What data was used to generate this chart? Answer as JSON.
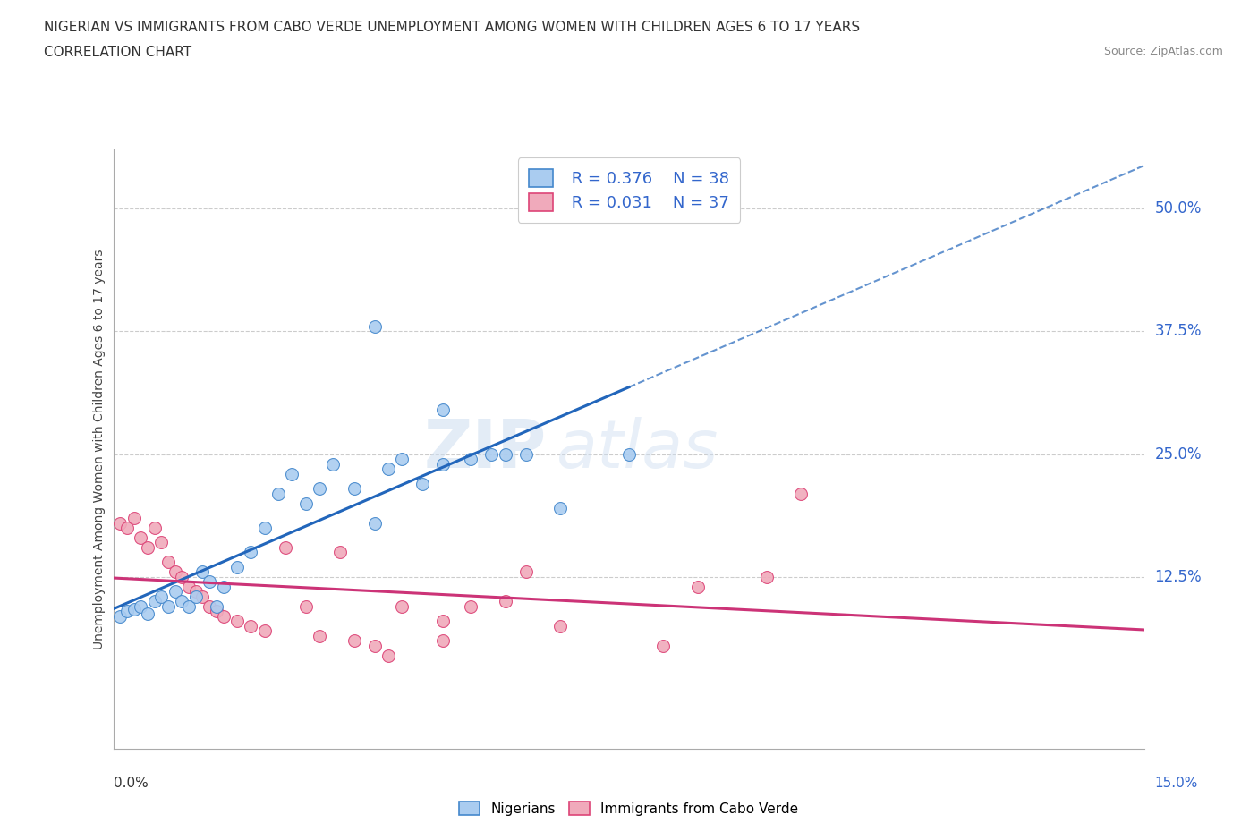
{
  "title_line1": "NIGERIAN VS IMMIGRANTS FROM CABO VERDE UNEMPLOYMENT AMONG WOMEN WITH CHILDREN AGES 6 TO 17 YEARS",
  "title_line2": "CORRELATION CHART",
  "source": "Source: ZipAtlas.com",
  "ylabel": "Unemployment Among Women with Children Ages 6 to 17 years",
  "ytick_labels": [
    "50.0%",
    "37.5%",
    "25.0%",
    "12.5%"
  ],
  "ytick_values": [
    0.5,
    0.375,
    0.25,
    0.125
  ],
  "xmin": 0.0,
  "xmax": 0.15,
  "ymin": -0.05,
  "ymax": 0.56,
  "R_nigerian": 0.376,
  "N_nigerian": 38,
  "R_caboverde": 0.031,
  "N_caboverde": 37,
  "color_nigerian_fill": "#aaccf0",
  "color_nigerian_edge": "#4488cc",
  "color_caboverde_fill": "#f0aabb",
  "color_caboverde_edge": "#dd4477",
  "color_line_nigerian": "#2266bb",
  "color_line_caboverde": "#cc3377",
  "watermark_line1": "ZIP",
  "watermark_line2": "atlas",
  "nigerian_x": [
    0.001,
    0.002,
    0.003,
    0.004,
    0.005,
    0.006,
    0.007,
    0.008,
    0.009,
    0.01,
    0.011,
    0.012,
    0.013,
    0.014,
    0.015,
    0.016,
    0.018,
    0.02,
    0.022,
    0.024,
    0.026,
    0.028,
    0.03,
    0.032,
    0.035,
    0.038,
    0.04,
    0.042,
    0.045,
    0.048,
    0.052,
    0.057,
    0.06,
    0.065,
    0.075,
    0.048,
    0.055,
    0.038
  ],
  "nigerian_y": [
    0.085,
    0.09,
    0.092,
    0.095,
    0.088,
    0.1,
    0.105,
    0.095,
    0.11,
    0.1,
    0.095,
    0.105,
    0.13,
    0.12,
    0.095,
    0.115,
    0.135,
    0.15,
    0.175,
    0.21,
    0.23,
    0.2,
    0.215,
    0.24,
    0.215,
    0.18,
    0.235,
    0.245,
    0.22,
    0.24,
    0.245,
    0.25,
    0.25,
    0.195,
    0.25,
    0.295,
    0.25,
    0.38
  ],
  "caboverde_x": [
    0.001,
    0.002,
    0.003,
    0.004,
    0.005,
    0.006,
    0.007,
    0.008,
    0.009,
    0.01,
    0.011,
    0.012,
    0.013,
    0.014,
    0.015,
    0.016,
    0.018,
    0.02,
    0.022,
    0.025,
    0.028,
    0.03,
    0.033,
    0.035,
    0.038,
    0.04,
    0.042,
    0.048,
    0.052,
    0.057,
    0.06,
    0.065,
    0.08,
    0.095,
    0.1,
    0.085,
    0.048
  ],
  "caboverde_y": [
    0.18,
    0.175,
    0.185,
    0.165,
    0.155,
    0.175,
    0.16,
    0.14,
    0.13,
    0.125,
    0.115,
    0.11,
    0.105,
    0.095,
    0.09,
    0.085,
    0.08,
    0.075,
    0.07,
    0.155,
    0.095,
    0.065,
    0.15,
    0.06,
    0.055,
    0.045,
    0.095,
    0.06,
    0.095,
    0.1,
    0.13,
    0.075,
    0.055,
    0.125,
    0.21,
    0.115,
    0.08
  ]
}
